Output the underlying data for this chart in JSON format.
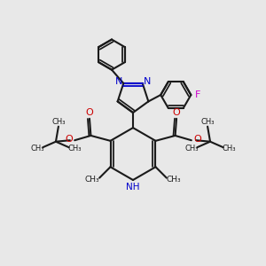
{
  "background_color": "#e8e8e8",
  "bond_color": "#1a1a1a",
  "nitrogen_color": "#0000cc",
  "oxygen_color": "#cc0000",
  "fluorine_color": "#cc00cc",
  "nh_color": "#0000cc",
  "line_width": 1.5,
  "figsize": [
    3.0,
    3.0
  ],
  "dpi": 100,
  "xlim": [
    0,
    10
  ],
  "ylim": [
    0,
    10
  ]
}
